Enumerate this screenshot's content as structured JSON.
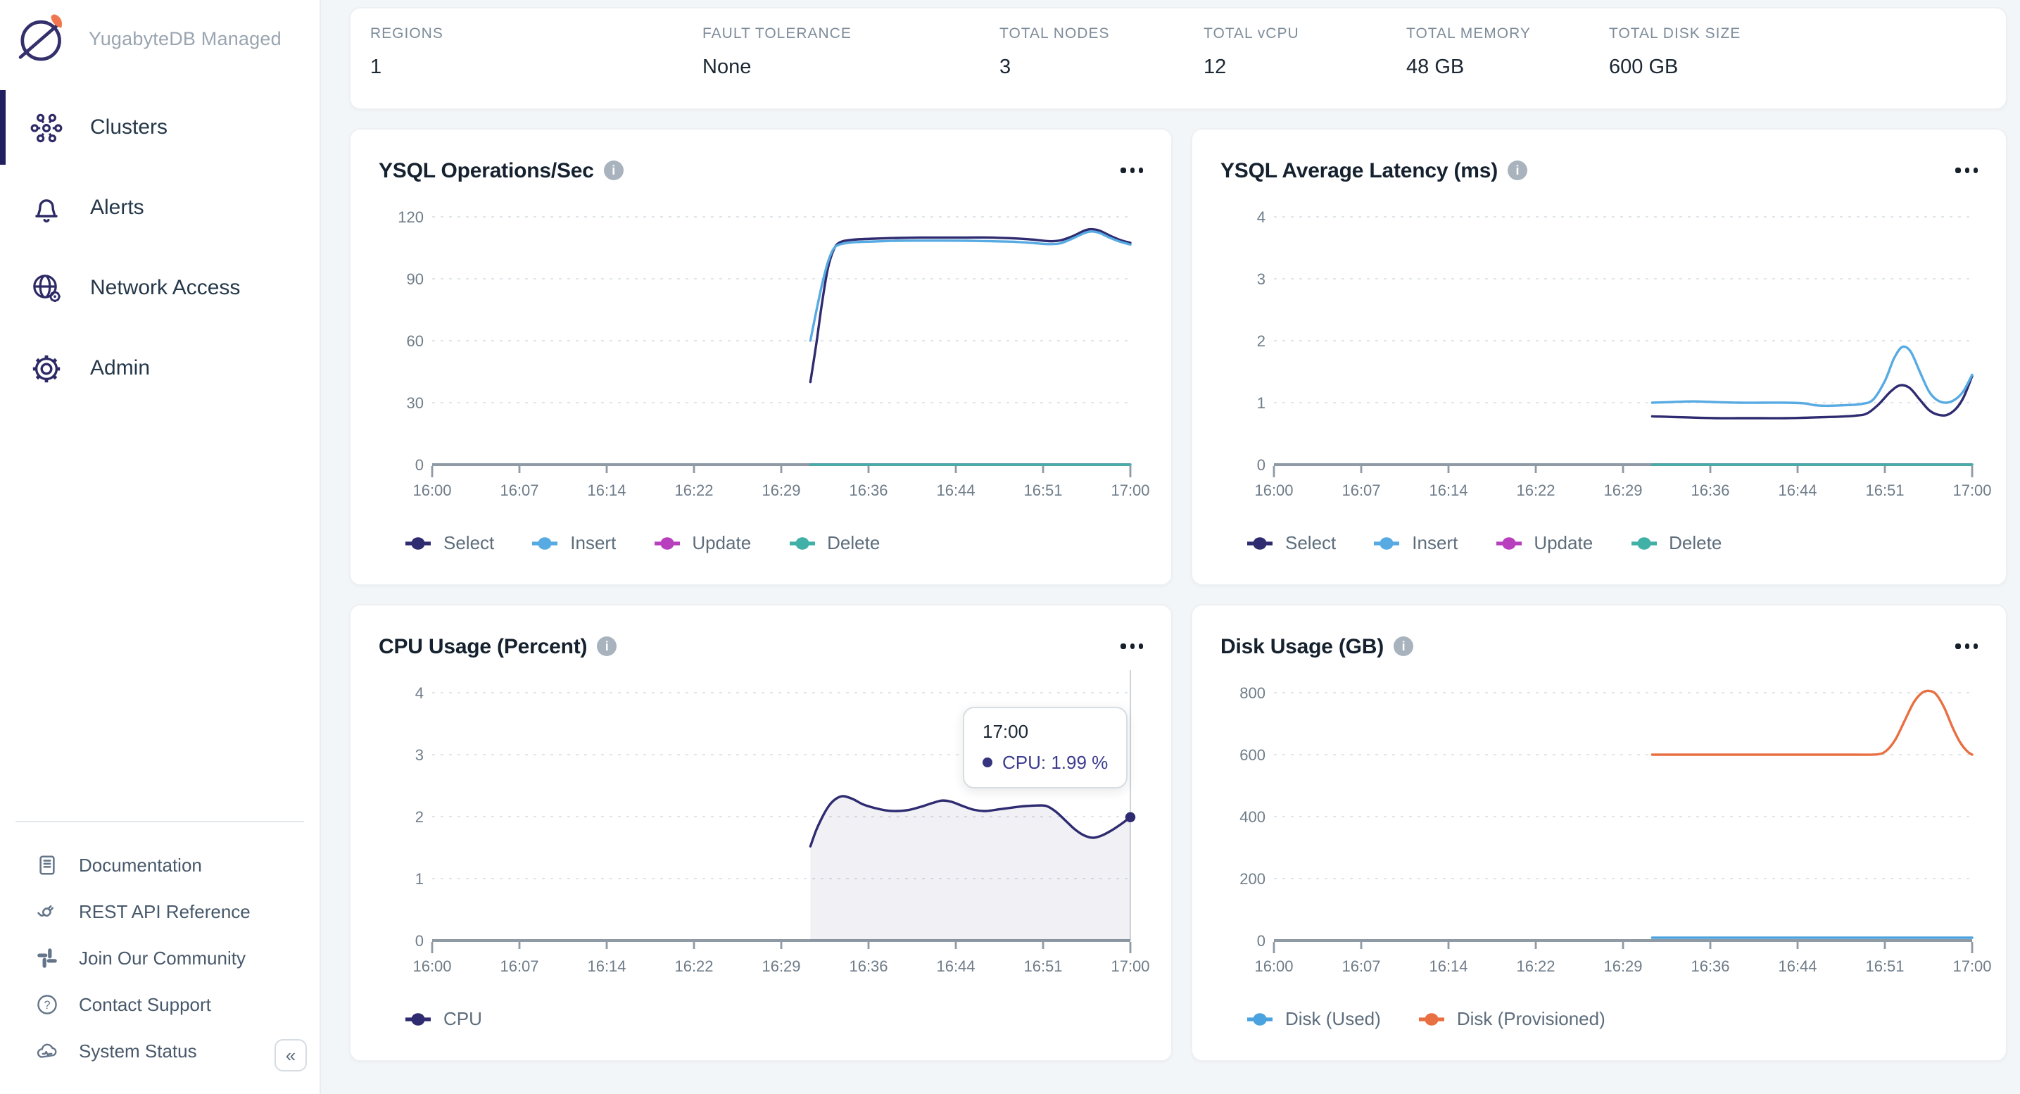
{
  "palette": {
    "page_bg": "#f3f6f9",
    "card_bg": "#ffffff",
    "sidebar_active": "#221f5e",
    "axis": "#8f9aa5",
    "grid": "#e0e5e9",
    "tick_label": "#6e7c89",
    "select": "#2e2b70",
    "insert": "#57aae2",
    "update": "#b840bf",
    "delete": "#41b0a6",
    "cpu": "#2e2b70",
    "disk_used": "#4aa2de",
    "disk_provisioned": "#e86f42"
  },
  "icons": {
    "info_glyph": "i",
    "collapse_glyph": "«",
    "help_glyph": "?"
  },
  "sidebar": {
    "brand": "YugabyteDB Managed",
    "nav": [
      {
        "label": "Clusters",
        "active": true
      },
      {
        "label": "Alerts",
        "active": false
      },
      {
        "label": "Network Access",
        "active": false
      },
      {
        "label": "Admin",
        "active": false
      }
    ],
    "footer_nav": [
      "Documentation",
      "REST API Reference",
      "Join Our Community",
      "Contact Support",
      "System Status"
    ]
  },
  "stats": [
    {
      "label": "REGIONS",
      "value": "1"
    },
    {
      "label": "FAULT TOLERANCE",
      "value": "None"
    },
    {
      "label": "TOTAL NODES",
      "value": "3"
    },
    {
      "label": "TOTAL vCPU",
      "value": "12"
    },
    {
      "label": "TOTAL MEMORY",
      "value": "48 GB"
    },
    {
      "label": "TOTAL DISK SIZE",
      "value": "600 GB"
    }
  ],
  "chart_data": [
    {
      "type": "line",
      "title": "YSQL Operations/Sec",
      "xlabel": "",
      "ylabel": "",
      "ylim": [
        0,
        120
      ],
      "yticks": [
        0,
        30,
        60,
        90,
        120
      ],
      "grid": "dotted",
      "legend_position": "bottom",
      "x_range_minutes": [
        0,
        60
      ],
      "x_ticklabels": [
        "16:00",
        "16:07",
        "16:14",
        "16:22",
        "16:29",
        "16:36",
        "16:44",
        "16:51",
        "17:00"
      ],
      "series": [
        {
          "name": "Select",
          "color": "#2e2b70",
          "points": [
            [
              32.5,
              40
            ],
            [
              33,
              58
            ],
            [
              33.5,
              78
            ],
            [
              34,
              95
            ],
            [
              34.5,
              104
            ],
            [
              35,
              107.5
            ],
            [
              36,
              108.8
            ],
            [
              38,
              109.4
            ],
            [
              40,
              109.8
            ],
            [
              42,
              110
            ],
            [
              44,
              110
            ],
            [
              46,
              110
            ],
            [
              48,
              110
            ],
            [
              50,
              109.6
            ],
            [
              51.5,
              109
            ],
            [
              53,
              108.2
            ],
            [
              54,
              108.6
            ],
            [
              55,
              110.5
            ],
            [
              56,
              113.2
            ],
            [
              56.6,
              114
            ],
            [
              57.3,
              113.4
            ],
            [
              58.2,
              111
            ],
            [
              59.2,
              108.6
            ],
            [
              60,
              107.4
            ]
          ]
        },
        {
          "name": "Insert",
          "color": "#57aae2",
          "points": [
            [
              32.5,
              60
            ],
            [
              33,
              74
            ],
            [
              33.5,
              87
            ],
            [
              34,
              98
            ],
            [
              34.5,
              104.5
            ],
            [
              35,
              106.6
            ],
            [
              36,
              107.6
            ],
            [
              38,
              108.1
            ],
            [
              40,
              108.4
            ],
            [
              42,
              108.5
            ],
            [
              44,
              108.5
            ],
            [
              46,
              108.4
            ],
            [
              48,
              108.2
            ],
            [
              50,
              107.9
            ],
            [
              51.5,
              107.4
            ],
            [
              53,
              106.8
            ],
            [
              54,
              107.2
            ],
            [
              55,
              109.4
            ],
            [
              56,
              112
            ],
            [
              56.6,
              112.9
            ],
            [
              57.3,
              112.3
            ],
            [
              58.2,
              110
            ],
            [
              59.2,
              107.8
            ],
            [
              60,
              106.6
            ]
          ]
        },
        {
          "name": "Update",
          "color": "#b840bf",
          "points": [
            [
              32.5,
              0
            ],
            [
              60,
              0
            ]
          ]
        },
        {
          "name": "Delete",
          "color": "#41b0a6",
          "points": [
            [
              32.5,
              0
            ],
            [
              60,
              0
            ]
          ]
        }
      ]
    },
    {
      "type": "line",
      "title": "YSQL Average Latency (ms)",
      "xlabel": "",
      "ylabel": "",
      "ylim": [
        0,
        4
      ],
      "yticks": [
        0,
        1,
        2,
        3,
        4
      ],
      "grid": "dotted",
      "legend_position": "bottom",
      "x_range_minutes": [
        0,
        60
      ],
      "x_ticklabels": [
        "16:00",
        "16:07",
        "16:14",
        "16:22",
        "16:29",
        "16:36",
        "16:44",
        "16:51",
        "17:00"
      ],
      "series": [
        {
          "name": "Select",
          "color": "#2e2b70",
          "points": [
            [
              32.5,
              0.78
            ],
            [
              34,
              0.77
            ],
            [
              36,
              0.76
            ],
            [
              38,
              0.75
            ],
            [
              40,
              0.75
            ],
            [
              42,
              0.75
            ],
            [
              44,
              0.75
            ],
            [
              46,
              0.76
            ],
            [
              48,
              0.77
            ],
            [
              50,
              0.79
            ],
            [
              51,
              0.83
            ],
            [
              52,
              0.98
            ],
            [
              53,
              1.18
            ],
            [
              53.8,
              1.28
            ],
            [
              54.6,
              1.24
            ],
            [
              55.5,
              1.05
            ],
            [
              56.3,
              0.88
            ],
            [
              57,
              0.81
            ],
            [
              57.8,
              0.8
            ],
            [
              58.6,
              0.9
            ],
            [
              59.3,
              1.1
            ],
            [
              60,
              1.43
            ]
          ]
        },
        {
          "name": "Insert",
          "color": "#57aae2",
          "points": [
            [
              32.5,
              1.0
            ],
            [
              34,
              1.01
            ],
            [
              36,
              1.02
            ],
            [
              38,
              1.01
            ],
            [
              40,
              1.0
            ],
            [
              42,
              1.0
            ],
            [
              44,
              1.0
            ],
            [
              45.5,
              0.99
            ],
            [
              46.5,
              0.96
            ],
            [
              47.5,
              0.95
            ],
            [
              49,
              0.96
            ],
            [
              50.5,
              0.98
            ],
            [
              51.5,
              1.05
            ],
            [
              52.5,
              1.35
            ],
            [
              53.3,
              1.72
            ],
            [
              54,
              1.9
            ],
            [
              54.7,
              1.83
            ],
            [
              55.5,
              1.5
            ],
            [
              56.3,
              1.18
            ],
            [
              57,
              1.04
            ],
            [
              57.8,
              1.0
            ],
            [
              58.6,
              1.06
            ],
            [
              59.3,
              1.2
            ],
            [
              60,
              1.45
            ]
          ]
        },
        {
          "name": "Update",
          "color": "#b840bf",
          "points": [
            [
              32.5,
              0
            ],
            [
              60,
              0
            ]
          ]
        },
        {
          "name": "Delete",
          "color": "#41b0a6",
          "points": [
            [
              32.5,
              0
            ],
            [
              60,
              0
            ]
          ]
        }
      ]
    },
    {
      "type": "area",
      "title": "CPU Usage (Percent)",
      "xlabel": "",
      "ylabel": "",
      "ylim": [
        0,
        4
      ],
      "yticks": [
        0,
        1,
        2,
        3,
        4
      ],
      "grid": "dotted",
      "legend_position": "bottom",
      "x_range_minutes": [
        0,
        60
      ],
      "x_ticklabels": [
        "16:00",
        "16:07",
        "16:14",
        "16:22",
        "16:29",
        "16:36",
        "16:44",
        "16:51",
        "17:00"
      ],
      "crosshair_x": 60,
      "tooltip": {
        "time": "17:00",
        "text": "CPU: 1.99 %"
      },
      "series": [
        {
          "name": "CPU",
          "color": "#2e2b70",
          "fill": true,
          "end_dot": true,
          "points": [
            [
              32.5,
              1.52
            ],
            [
              33,
              1.78
            ],
            [
              33.6,
              2.02
            ],
            [
              34.2,
              2.2
            ],
            [
              34.8,
              2.3
            ],
            [
              35.4,
              2.33
            ],
            [
              36.2,
              2.28
            ],
            [
              37,
              2.2
            ],
            [
              38,
              2.14
            ],
            [
              39,
              2.1
            ],
            [
              40,
              2.09
            ],
            [
              41,
              2.11
            ],
            [
              42,
              2.16
            ],
            [
              43,
              2.22
            ],
            [
              43.8,
              2.26
            ],
            [
              44.6,
              2.24
            ],
            [
              45.6,
              2.17
            ],
            [
              46.6,
              2.11
            ],
            [
              47.6,
              2.09
            ],
            [
              48.8,
              2.12
            ],
            [
              50,
              2.15
            ],
            [
              51,
              2.17
            ],
            [
              52,
              2.18
            ],
            [
              52.8,
              2.17
            ],
            [
              53.6,
              2.08
            ],
            [
              54.4,
              1.94
            ],
            [
              55.2,
              1.8
            ],
            [
              56,
              1.7
            ],
            [
              56.8,
              1.66
            ],
            [
              57.6,
              1.7
            ],
            [
              58.4,
              1.78
            ],
            [
              59.2,
              1.88
            ],
            [
              60,
              1.99
            ]
          ]
        }
      ]
    },
    {
      "type": "line",
      "title": "Disk Usage (GB)",
      "xlabel": "",
      "ylabel": "",
      "ylim": [
        0,
        800
      ],
      "yticks": [
        0,
        200,
        400,
        600,
        800
      ],
      "grid": "dotted",
      "legend_position": "bottom",
      "x_range_minutes": [
        0,
        60
      ],
      "x_ticklabels": [
        "16:00",
        "16:07",
        "16:14",
        "16:22",
        "16:29",
        "16:36",
        "16:44",
        "16:51",
        "17:00"
      ],
      "series": [
        {
          "name": "Disk (Used)",
          "color": "#4aa2de",
          "points": [
            [
              32.5,
              9
            ],
            [
              60,
              9
            ]
          ]
        },
        {
          "name": "Disk (Provisioned)",
          "color": "#e86f42",
          "points": [
            [
              32.5,
              600
            ],
            [
              46,
              600
            ],
            [
              50,
              600
            ],
            [
              51.8,
              601
            ],
            [
              52.6,
              612
            ],
            [
              53.4,
              648
            ],
            [
              54.2,
              710
            ],
            [
              55,
              770
            ],
            [
              55.7,
              800
            ],
            [
              56.3,
              806
            ],
            [
              56.9,
              795
            ],
            [
              57.6,
              752
            ],
            [
              58.3,
              690
            ],
            [
              59,
              638
            ],
            [
              59.6,
              610
            ],
            [
              60,
              600
            ]
          ]
        }
      ]
    }
  ]
}
